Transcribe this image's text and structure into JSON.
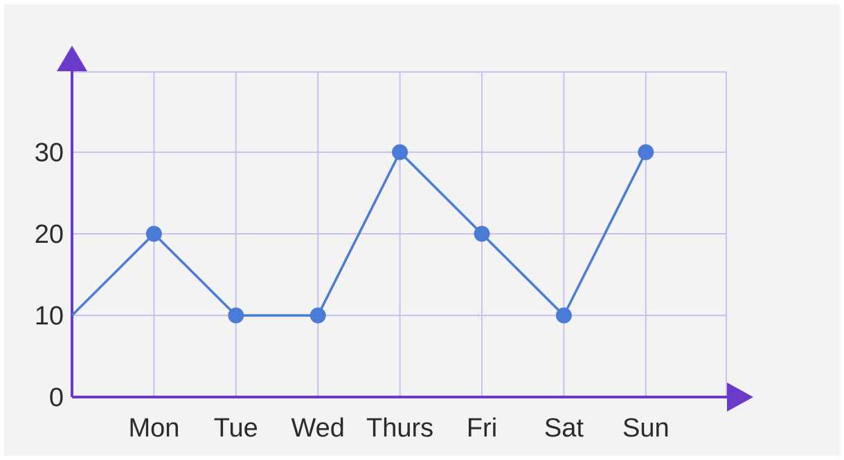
{
  "chart_data": {
    "type": "line",
    "title": "",
    "xlabel": "",
    "ylabel": "",
    "categories": [
      "Mon",
      "Tue",
      "Wed",
      "Thurs",
      "Fri",
      "Sat",
      "Sun"
    ],
    "series": [
      {
        "values": [
          20,
          10,
          10,
          30,
          20,
          10,
          30
        ],
        "start_value_at_y_axis": 10
      }
    ],
    "yticks": [
      "0",
      "10",
      "20",
      "30"
    ],
    "ylim": [
      0,
      40
    ],
    "grid": true,
    "colors": {
      "line": "#4a7bd6",
      "marker": "#4a7bd6",
      "axis": "#6a3bc8",
      "grid": "#c9bff0",
      "text": "#2b2b2b",
      "background": "#f3f3f4"
    }
  }
}
